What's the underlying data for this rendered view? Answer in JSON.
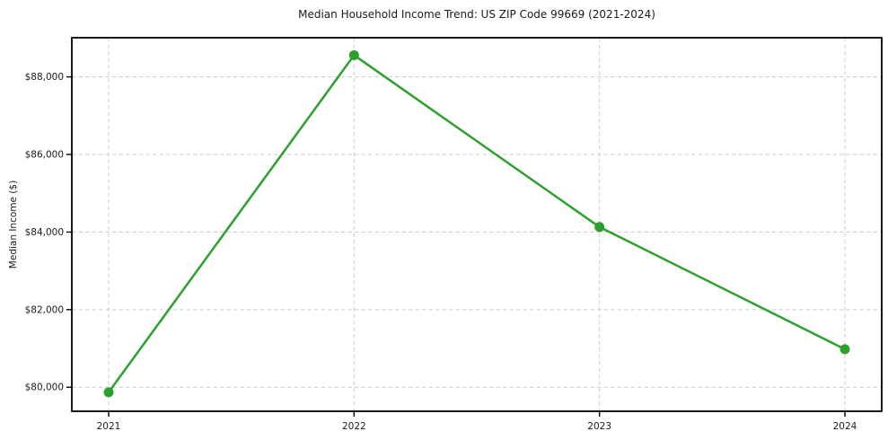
{
  "chart_data": {
    "type": "line",
    "title": "Median Household Income Trend: US ZIP Code 99669 (2021-2024)",
    "xlabel": "",
    "ylabel": "Median Income ($)",
    "x": [
      2021,
      2022,
      2023,
      2024
    ],
    "series": [
      {
        "values": [
          79870,
          88560,
          84130,
          80980
        ],
        "color": "#2ca02c",
        "marker": "circle"
      }
    ],
    "xlim": [
      2020.85,
      2024.15
    ],
    "ylim": [
      79380,
      89010
    ],
    "x_ticks": {
      "values": [
        2021,
        2022,
        2023,
        2024
      ],
      "labels": [
        "2021",
        "2022",
        "2023",
        "2024"
      ]
    },
    "y_ticks": {
      "values": [
        80000,
        82000,
        84000,
        86000,
        88000
      ],
      "labels": [
        "$80,000",
        "$82,000",
        "$84,000",
        "$86,000",
        "$88,000"
      ]
    },
    "grid": true,
    "grid_style": "dashed",
    "grid_color": "#cccccc",
    "spine_color": "#000000",
    "text_color": "#1a1a1a",
    "legend": "none",
    "background": "#ffffff"
  }
}
